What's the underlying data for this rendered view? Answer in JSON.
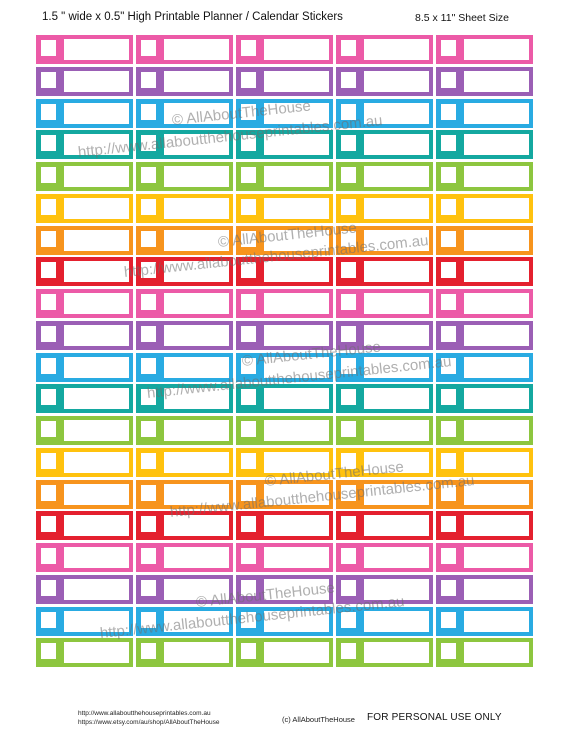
{
  "header": {
    "title": "1.5 \" wide x 0.5\" High Printable Planner / Calendar Stickers",
    "sheet_size": "8.5 x 11\" Sheet Size"
  },
  "watermark": {
    "copyright": "© AllAboutTheHouse",
    "url": "http://www.allaboutthehouseprintables.com.au"
  },
  "rows": [
    {
      "color": "#ec5aa7"
    },
    {
      "color": "#9b5fb5"
    },
    {
      "color": "#29abe2"
    },
    {
      "color": "#14a8a0"
    },
    {
      "color": "#8dc63f"
    },
    {
      "color": "#ffc20e"
    },
    {
      "color": "#f7941d"
    },
    {
      "color": "#e4202e"
    },
    {
      "color": "#ec5aa7"
    },
    {
      "color": "#9b5fb5"
    },
    {
      "color": "#29abe2"
    },
    {
      "color": "#14a8a0"
    },
    {
      "color": "#8dc63f"
    },
    {
      "color": "#ffc20e"
    },
    {
      "color": "#f7941d"
    },
    {
      "color": "#e4202e"
    },
    {
      "color": "#ec5aa7"
    },
    {
      "color": "#9b5fb5"
    },
    {
      "color": "#29abe2"
    },
    {
      "color": "#8dc63f"
    }
  ],
  "footer": {
    "url1": "http://www.allaboutthehouseprintables.com.au",
    "url2": "https://www.etsy.com/au/shop/AllAboutTheHouse",
    "copyright": "(c) AllAboutTheHouse",
    "personal": "FOR PERSONAL USE ONLY"
  }
}
